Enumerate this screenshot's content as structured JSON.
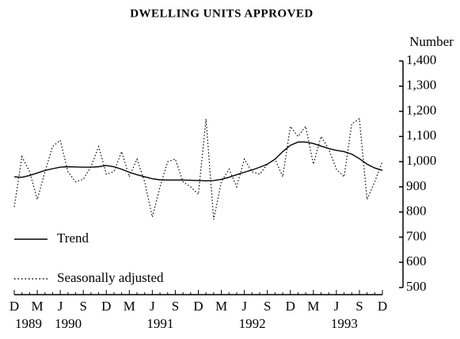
{
  "chart_data": {
    "type": "line",
    "title": "DWELLING UNITS APPROVED",
    "y_axis_label": "Number",
    "categories": [
      "D",
      null,
      null,
      "M",
      null,
      null,
      "J",
      null,
      null,
      "S",
      null,
      null,
      "D",
      null,
      null,
      "M",
      null,
      null,
      "J",
      null,
      null,
      "S",
      null,
      null,
      "D",
      null,
      null,
      "M",
      null,
      null,
      "J",
      null,
      null,
      "S",
      null,
      null,
      "D",
      null,
      null,
      "M",
      null,
      null,
      "J",
      null,
      null,
      "S",
      null,
      null,
      "D"
    ],
    "years": [
      "1989",
      "1990",
      "1991",
      "1992",
      "1993"
    ],
    "series": [
      {
        "name": "Trend",
        "color": "#000000",
        "dash": "solid",
        "values": [
          940,
          938,
          945,
          955,
          965,
          972,
          978,
          980,
          979,
          978,
          978,
          980,
          985,
          980,
          970,
          958,
          948,
          940,
          932,
          928,
          927,
          927,
          927,
          926,
          925,
          924,
          925,
          930,
          938,
          948,
          958,
          967,
          978,
          990,
          1010,
          1040,
          1065,
          1078,
          1078,
          1072,
          1062,
          1052,
          1045,
          1040,
          1030,
          1012,
          990,
          975,
          965
        ]
      },
      {
        "name": "Seasonally adjusted",
        "color": "#000000",
        "dash": "dotted",
        "values": [
          820,
          1020,
          960,
          850,
          960,
          1060,
          1085,
          960,
          920,
          930,
          980,
          1060,
          950,
          960,
          1040,
          940,
          1010,
          920,
          780,
          900,
          1000,
          1010,
          920,
          900,
          870,
          1170,
          770,
          920,
          970,
          900,
          1010,
          960,
          950,
          990,
          1010,
          940,
          1140,
          1100,
          1140,
          990,
          1100,
          1050,
          970,
          940,
          1150,
          1170,
          850,
          920,
          1000
        ]
      }
    ],
    "ylim": [
      500,
      1400
    ],
    "yticks": [
      500,
      600,
      700,
      800,
      900,
      {
        "value": 1000,
        "label": "1,000"
      },
      {
        "value": 1100,
        "label": "1,100"
      },
      {
        "value": 1200,
        "label": "1,200"
      },
      {
        "value": 1300,
        "label": "1,300"
      },
      {
        "value": 1400,
        "label": "1,400"
      }
    ],
    "legend": "bottom-left"
  }
}
